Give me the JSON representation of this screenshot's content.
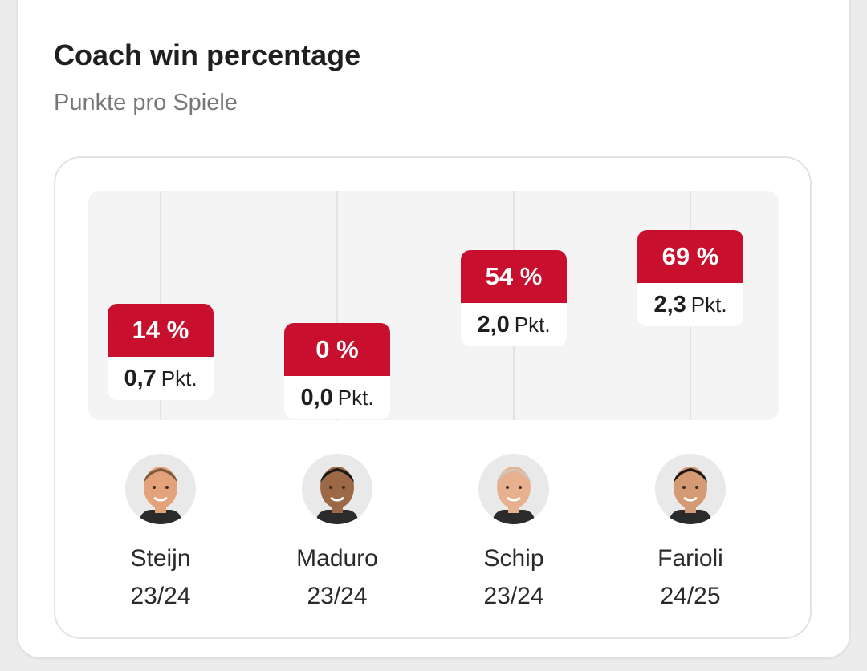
{
  "title": "Coach win percentage",
  "subtitle": "Punkte pro Spiele",
  "chart_data": {
    "type": "bar",
    "title": "Coach win percentage",
    "subtitle": "Punkte pro Spiele",
    "categories": [
      "Steijn",
      "Maduro",
      "Schip",
      "Farioli"
    ],
    "seasons": [
      "23/24",
      "23/24",
      "23/24",
      "24/25"
    ],
    "series": [
      {
        "values": [
          14,
          0,
          54,
          69
        ]
      },
      {
        "values": [
          0.7,
          0.0,
          2.0,
          2.3
        ]
      }
    ],
    "labels": {
      "win_pct": [
        "14 %",
        "0 %",
        "54 %",
        "69 %"
      ],
      "points_value": [
        "0,7",
        "0,0",
        "2,0",
        "2,3"
      ],
      "points_unit": "Pkt."
    },
    "ylim": [
      0,
      100
    ],
    "grid": true,
    "accent_color": "#c8102e"
  }
}
